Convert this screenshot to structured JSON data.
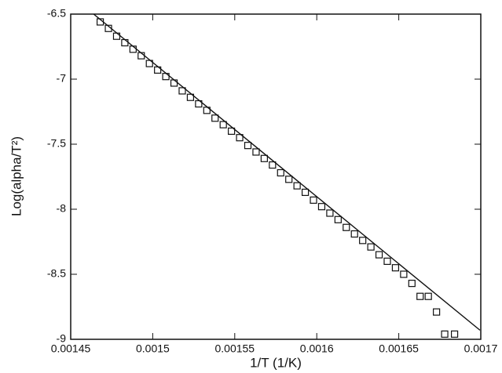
{
  "chart_data": {
    "type": "scatter",
    "x_label": "1/T (1/K)",
    "y_label": "Log(alpha/T²)",
    "xlim": [
      0.00145,
      0.0017
    ],
    "xticks": [
      0.00145,
      0.0015,
      0.00155,
      0.0016,
      0.00165,
      0.0017
    ],
    "ylim": [
      -9,
      -6.5
    ],
    "yticks": [
      -9,
      -8.5,
      -8,
      -7.5,
      -7,
      -6.5
    ],
    "series": [
      {
        "name": "data",
        "kind": "points",
        "color": "#111111",
        "x": [
          0.001468,
          0.001473,
          0.001478,
          0.001483,
          0.001488,
          0.001493,
          0.001498,
          0.001503,
          0.001508,
          0.001513,
          0.001518,
          0.001523,
          0.001528,
          0.001533,
          0.001538,
          0.001543,
          0.001548,
          0.001553,
          0.001558,
          0.001563,
          0.001568,
          0.001573,
          0.001578,
          0.001583,
          0.001588,
          0.001593,
          0.001598,
          0.001603,
          0.001608,
          0.001613,
          0.001618,
          0.001623,
          0.001628,
          0.001633,
          0.001638,
          0.001643,
          0.001648,
          0.001653,
          0.001658,
          0.001663,
          0.001668,
          0.001673,
          0.001678,
          0.001684
        ],
        "values": [
          -6.56,
          -6.61,
          -6.67,
          -6.72,
          -6.77,
          -6.82,
          -6.88,
          -6.93,
          -6.98,
          -7.03,
          -7.09,
          -7.14,
          -7.19,
          -7.24,
          -7.3,
          -7.35,
          -7.4,
          -7.45,
          -7.51,
          -7.56,
          -7.61,
          -7.66,
          -7.72,
          -7.77,
          -7.82,
          -7.87,
          -7.93,
          -7.98,
          -8.03,
          -8.08,
          -8.14,
          -8.19,
          -8.24,
          -8.29,
          -8.35,
          -8.4,
          -8.45,
          -8.5,
          -8.57,
          -8.67,
          -8.67,
          -8.79,
          -8.96,
          -8.96
        ]
      },
      {
        "name": "fit",
        "kind": "line",
        "color": "#111111",
        "x": [
          0.001464,
          0.0016995
        ],
        "values": [
          -6.5,
          -8.93
        ]
      }
    ]
  }
}
